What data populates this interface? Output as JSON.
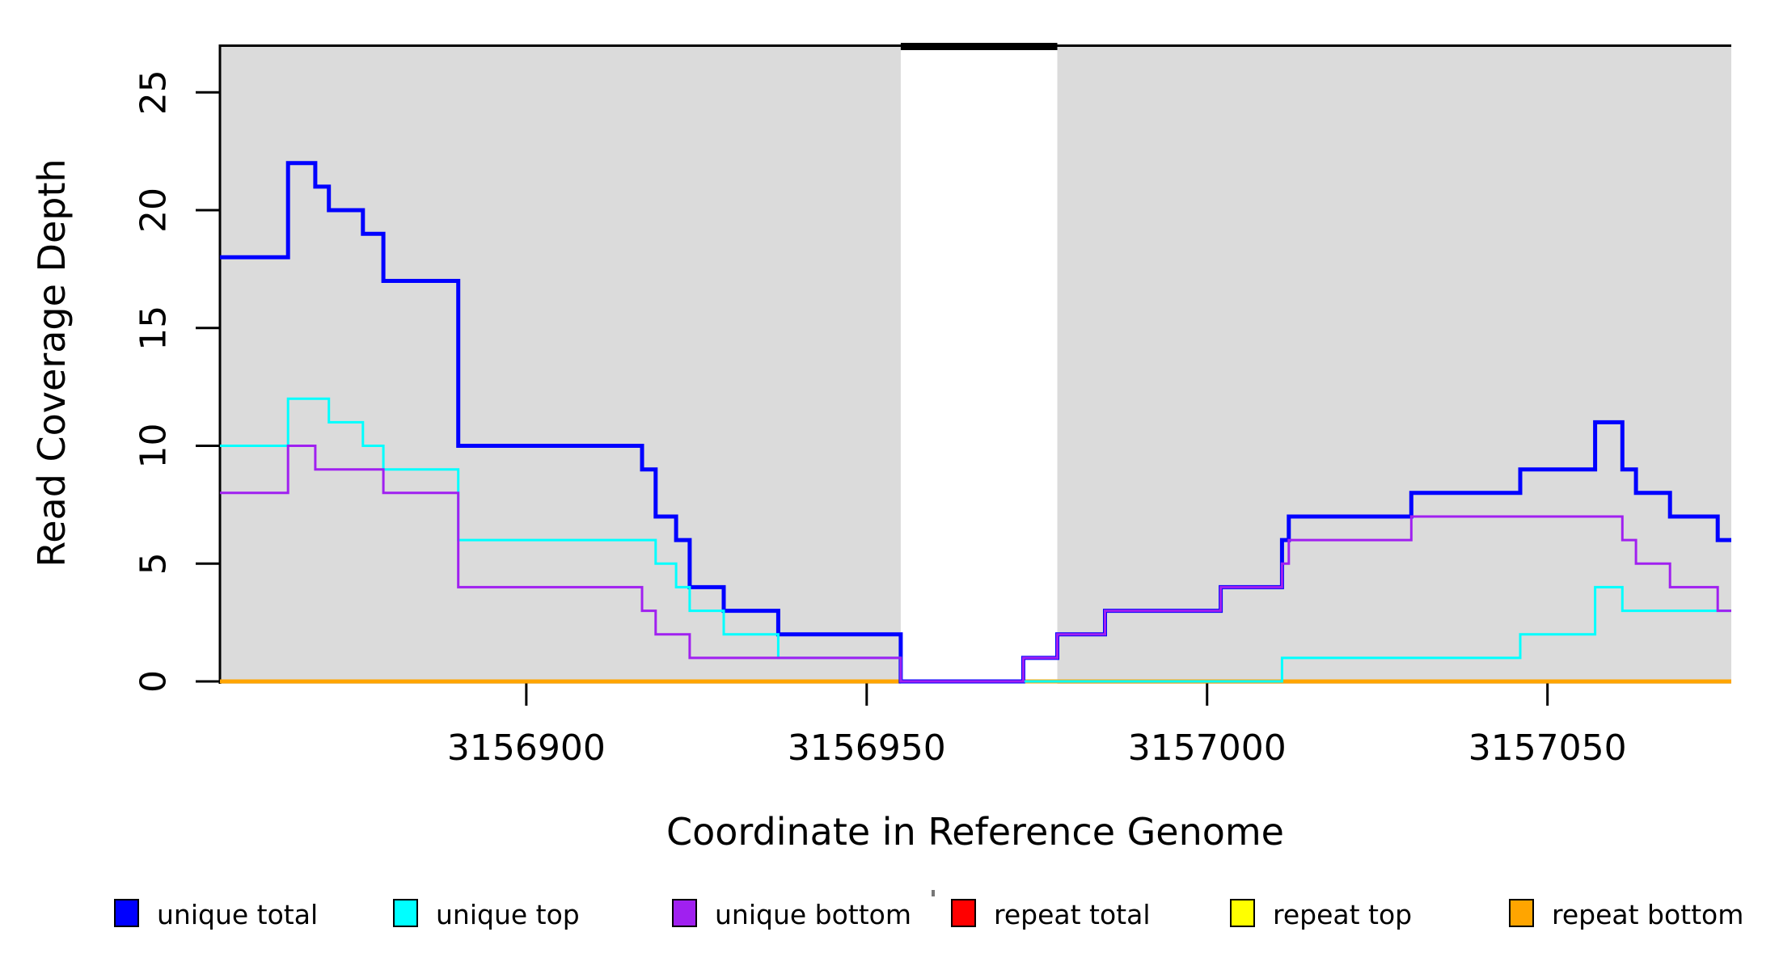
{
  "chart_data": {
    "type": "line",
    "subtype": "step-coverage-plot",
    "title": "",
    "xlabel": "Coordinate in Reference Genome",
    "ylabel": "Read Coverage Depth",
    "xlim": [
      3156855,
      3157077
    ],
    "ylim": [
      0,
      27
    ],
    "x_ticks": [
      "3156900",
      "3156950",
      "3157000",
      "3157050"
    ],
    "x_tick_values": [
      3156900,
      3156950,
      3157000,
      3157050
    ],
    "y_ticks": [
      "0",
      "5",
      "10",
      "15",
      "20",
      "25"
    ],
    "y_tick_values": [
      0,
      5,
      10,
      15,
      20,
      25
    ],
    "grid": false,
    "colors": {
      "shade": "#DBDBDB",
      "gap_bar": "#000000",
      "axis": "#000000",
      "background": "#FFFFFF"
    },
    "shaded_regions": [
      [
        3156855,
        3156955
      ],
      [
        3156978,
        3157077
      ]
    ],
    "white_gap": [
      3156955,
      3156978
    ],
    "series": [
      {
        "name": "repeat total",
        "color": "#FF0000",
        "width": 4,
        "points": [
          [
            3156855,
            0
          ],
          [
            3157077,
            0
          ]
        ]
      },
      {
        "name": "repeat top",
        "color": "#FFFF00",
        "width": 3,
        "points": [
          [
            3156855,
            0
          ],
          [
            3157077,
            0
          ]
        ]
      },
      {
        "name": "repeat bottom",
        "color": "#FFA500",
        "width": 5,
        "points": [
          [
            3156855,
            0
          ],
          [
            3157077,
            0
          ]
        ]
      },
      {
        "name": "unique total",
        "color": "#0000FF",
        "width": 5,
        "points": [
          [
            3156855,
            18
          ],
          [
            3156865,
            22
          ],
          [
            3156869,
            21
          ],
          [
            3156871,
            20
          ],
          [
            3156876,
            19
          ],
          [
            3156879,
            17
          ],
          [
            3156890,
            10
          ],
          [
            3156917,
            9
          ],
          [
            3156919,
            7
          ],
          [
            3156922,
            6
          ],
          [
            3156924,
            4
          ],
          [
            3156929,
            3
          ],
          [
            3156937,
            2
          ],
          [
            3156955,
            0
          ],
          [
            3156973,
            1
          ],
          [
            3156978,
            2
          ],
          [
            3156985,
            3
          ],
          [
            3157002,
            4
          ],
          [
            3157011,
            6
          ],
          [
            3157012,
            7
          ],
          [
            3157030,
            8
          ],
          [
            3157046,
            9
          ],
          [
            3157057,
            11
          ],
          [
            3157061,
            9
          ],
          [
            3157063,
            8
          ],
          [
            3157068,
            7
          ],
          [
            3157075,
            6
          ],
          [
            3157077,
            6
          ]
        ]
      },
      {
        "name": "unique top",
        "color": "#00FFFF",
        "width": 3,
        "points": [
          [
            3156855,
            10
          ],
          [
            3156865,
            12
          ],
          [
            3156871,
            11
          ],
          [
            3156876,
            10
          ],
          [
            3156879,
            9
          ],
          [
            3156890,
            6
          ],
          [
            3156919,
            5
          ],
          [
            3156922,
            4
          ],
          [
            3156924,
            3
          ],
          [
            3156929,
            2
          ],
          [
            3156937,
            1
          ],
          [
            3156955,
            0
          ],
          [
            3157011,
            1
          ],
          [
            3157046,
            2
          ],
          [
            3157057,
            4
          ],
          [
            3157061,
            3
          ],
          [
            3157077,
            3
          ]
        ]
      },
      {
        "name": "unique bottom",
        "color": "#A020F0",
        "width": 3,
        "points": [
          [
            3156855,
            8
          ],
          [
            3156865,
            10
          ],
          [
            3156869,
            9
          ],
          [
            3156879,
            8
          ],
          [
            3156890,
            4
          ],
          [
            3156917,
            3
          ],
          [
            3156919,
            2
          ],
          [
            3156924,
            1
          ],
          [
            3156955,
            0
          ],
          [
            3156973,
            1
          ],
          [
            3156978,
            2
          ],
          [
            3156985,
            3
          ],
          [
            3157002,
            4
          ],
          [
            3157011,
            5
          ],
          [
            3157012,
            6
          ],
          [
            3157030,
            7
          ],
          [
            3157061,
            6
          ],
          [
            3157063,
            5
          ],
          [
            3157068,
            4
          ],
          [
            3157075,
            3
          ],
          [
            3157077,
            3
          ]
        ]
      }
    ],
    "legend": {
      "position": "bottom",
      "entries": [
        {
          "label": "unique total",
          "color": "#0000FF"
        },
        {
          "label": "unique top",
          "color": "#00FFFF"
        },
        {
          "label": "unique bottom",
          "color": "#A020F0"
        },
        {
          "label": "repeat total",
          "color": "#FF0000"
        },
        {
          "label": "repeat top",
          "color": "#FFFF00"
        },
        {
          "label": "repeat bottom",
          "color": "#FFA500"
        }
      ]
    }
  }
}
